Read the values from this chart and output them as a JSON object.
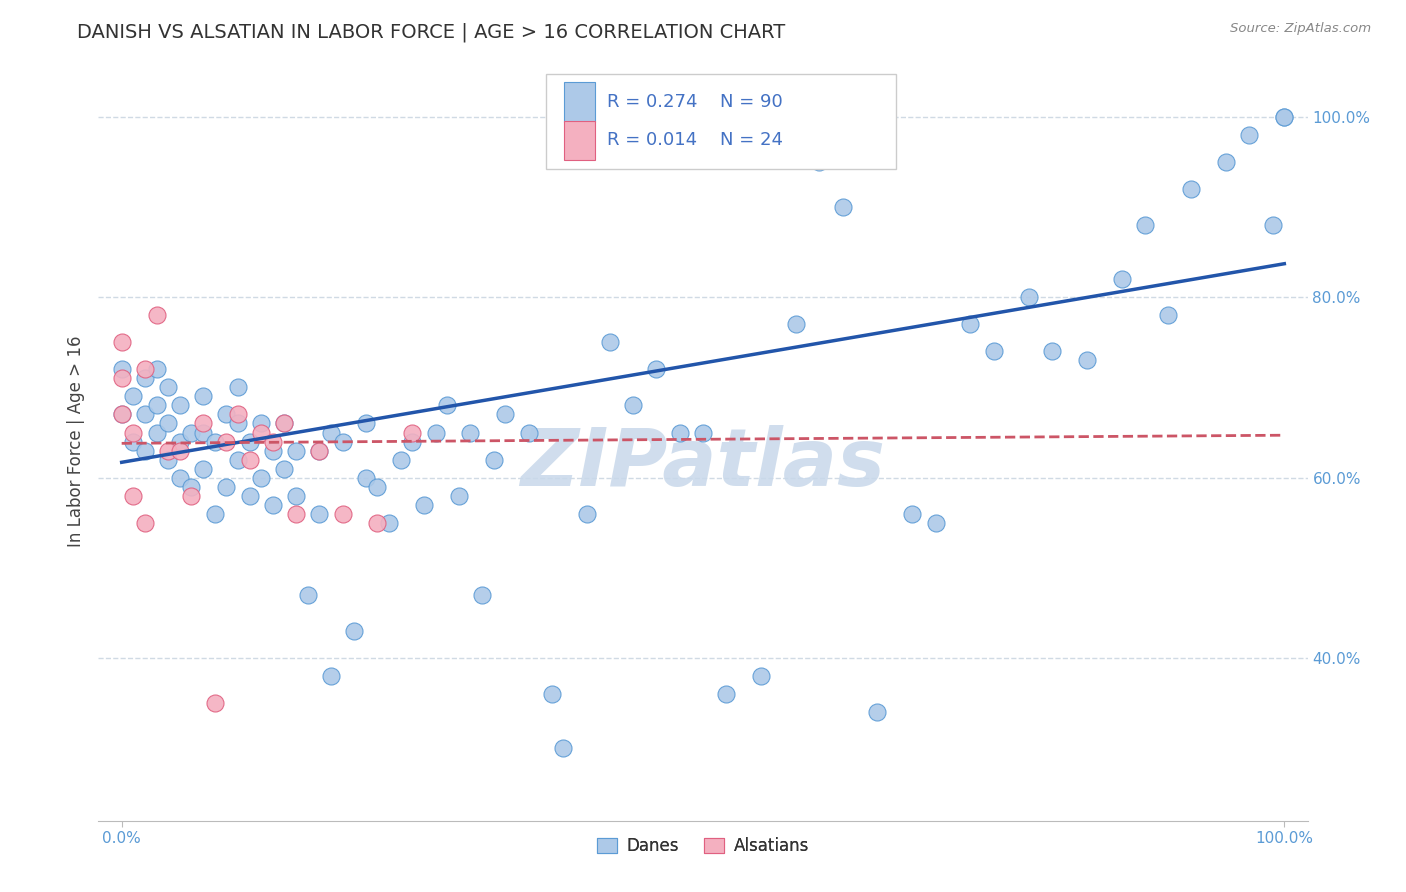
{
  "title": "DANISH VS ALSATIAN IN LABOR FORCE | AGE > 16 CORRELATION CHART",
  "source_text": "Source: ZipAtlas.com",
  "ylabel": "In Labor Force | Age > 16",
  "xlim": [
    -0.02,
    1.02
  ],
  "ylim": [
    0.22,
    1.06
  ],
  "y_tick_vals": [
    0.4,
    0.6,
    0.8,
    1.0
  ],
  "legend_r_danish": "R = 0.274",
  "legend_n_danish": "N = 90",
  "legend_r_alsatian": "R = 0.014",
  "legend_n_alsatian": "N = 24",
  "danish_color": "#adc9e8",
  "danish_edge": "#5b9bd5",
  "alsatian_color": "#f4b0c0",
  "alsatian_edge": "#e06080",
  "trend_danish_color": "#2255aa",
  "trend_alsatian_color": "#cc5566",
  "watermark_color": "#c8d8ea",
  "background_color": "#ffffff",
  "grid_color": "#d0dae4",
  "danes_x": [
    0.0,
    0.0,
    0.01,
    0.01,
    0.02,
    0.02,
    0.02,
    0.03,
    0.03,
    0.03,
    0.04,
    0.04,
    0.04,
    0.05,
    0.05,
    0.05,
    0.06,
    0.06,
    0.07,
    0.07,
    0.07,
    0.08,
    0.08,
    0.09,
    0.09,
    0.1,
    0.1,
    0.1,
    0.11,
    0.11,
    0.12,
    0.12,
    0.13,
    0.13,
    0.14,
    0.14,
    0.15,
    0.15,
    0.16,
    0.17,
    0.17,
    0.18,
    0.18,
    0.19,
    0.2,
    0.21,
    0.21,
    0.22,
    0.23,
    0.24,
    0.25,
    0.26,
    0.27,
    0.28,
    0.29,
    0.3,
    0.31,
    0.32,
    0.33,
    0.35,
    0.37,
    0.38,
    0.4,
    0.42,
    0.44,
    0.46,
    0.48,
    0.5,
    0.52,
    0.55,
    0.58,
    0.6,
    0.62,
    0.65,
    0.68,
    0.7,
    0.73,
    0.75,
    0.78,
    0.8,
    0.83,
    0.86,
    0.88,
    0.9,
    0.92,
    0.95,
    0.97,
    0.99,
    1.0,
    1.0
  ],
  "danes_y": [
    0.67,
    0.72,
    0.64,
    0.69,
    0.63,
    0.67,
    0.71,
    0.65,
    0.68,
    0.72,
    0.62,
    0.66,
    0.7,
    0.6,
    0.64,
    0.68,
    0.59,
    0.65,
    0.61,
    0.65,
    0.69,
    0.56,
    0.64,
    0.59,
    0.67,
    0.62,
    0.66,
    0.7,
    0.58,
    0.64,
    0.6,
    0.66,
    0.57,
    0.63,
    0.61,
    0.66,
    0.58,
    0.63,
    0.47,
    0.56,
    0.63,
    0.38,
    0.65,
    0.64,
    0.43,
    0.6,
    0.66,
    0.59,
    0.55,
    0.62,
    0.64,
    0.57,
    0.65,
    0.68,
    0.58,
    0.65,
    0.47,
    0.62,
    0.67,
    0.65,
    0.36,
    0.3,
    0.56,
    0.75,
    0.68,
    0.72,
    0.65,
    0.65,
    0.36,
    0.38,
    0.77,
    0.95,
    0.9,
    0.34,
    0.56,
    0.55,
    0.77,
    0.74,
    0.8,
    0.74,
    0.73,
    0.82,
    0.88,
    0.78,
    0.92,
    0.95,
    0.98,
    0.88,
    1.0,
    1.0
  ],
  "alsatians_x": [
    0.0,
    0.0,
    0.0,
    0.01,
    0.01,
    0.02,
    0.02,
    0.03,
    0.04,
    0.05,
    0.06,
    0.07,
    0.08,
    0.09,
    0.1,
    0.11,
    0.12,
    0.13,
    0.14,
    0.15,
    0.17,
    0.19,
    0.22,
    0.25
  ],
  "alsatians_y": [
    0.67,
    0.71,
    0.75,
    0.58,
    0.65,
    0.72,
    0.55,
    0.78,
    0.63,
    0.63,
    0.58,
    0.66,
    0.35,
    0.64,
    0.67,
    0.62,
    0.65,
    0.64,
    0.66,
    0.56,
    0.63,
    0.56,
    0.55,
    0.65
  ],
  "trend_danes_x0": 0.0,
  "trend_danes_y0": 0.617,
  "trend_danes_x1": 1.0,
  "trend_danes_y1": 0.837,
  "trend_alsatians_x0": 0.0,
  "trend_alsatians_y0": 0.638,
  "trend_alsatians_x1": 1.0,
  "trend_alsatians_y1": 0.647
}
